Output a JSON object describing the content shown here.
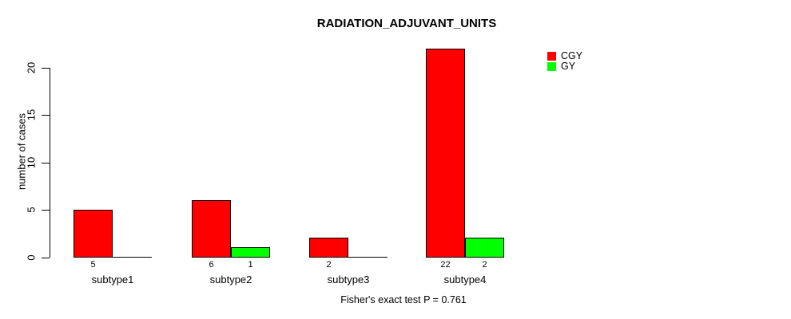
{
  "chart_data": {
    "type": "bar",
    "title": "RADIATION_ADJUVANT_UNITS",
    "ylabel": "number of cases",
    "xlabel": "",
    "categories": [
      "subtype1",
      "subtype2",
      "subtype3",
      "subtype4"
    ],
    "series": [
      {
        "name": "CGY",
        "color": "#ff0000",
        "values": [
          5,
          6,
          2,
          22
        ]
      },
      {
        "name": "GY",
        "color": "#00ff00",
        "values": [
          0,
          1,
          0,
          2
        ]
      }
    ],
    "ylim": [
      0,
      22
    ],
    "yticks": [
      0,
      5,
      10,
      15,
      20
    ],
    "grid": false,
    "legend_position": "top-right",
    "value_labels_shown_for_nonzero_bars": true,
    "annotation": "Fisher's exact test P = 0.761",
    "background_color": "#ffffff",
    "bar_border_color": "#000000"
  }
}
